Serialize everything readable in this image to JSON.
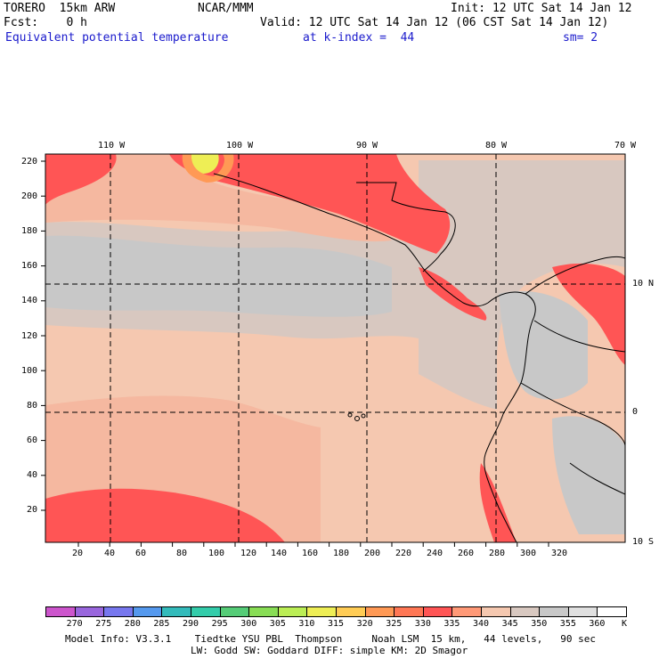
{
  "header": {
    "model": "TORERO  15km ARW",
    "org": "NCAR/MMM",
    "init": "Init: 12 UTC Sat 14 Jan 12",
    "fcst": "Fcst:    0 h",
    "valid": "Valid: 12 UTC Sat 14 Jan 12 (06 CST Sat 14 Jan 12)",
    "field": "Equivalent potential temperature",
    "level": "at k-index =  44",
    "smooth": "sm= 2"
  },
  "map": {
    "top_lon_labels": [
      "110 W",
      "100 W",
      "90 W",
      "80 W",
      "70 W"
    ],
    "right_lat_labels": [
      "10 N",
      "0",
      "10 S"
    ],
    "y_grid_labels": [
      "220",
      "200",
      "180",
      "160",
      "140",
      "120",
      "100",
      "80",
      "60",
      "40",
      "20"
    ],
    "x_grid_labels": [
      "20",
      "40",
      "60",
      "80",
      "100",
      "120",
      "140",
      "160",
      "180",
      "200",
      "220",
      "240",
      "260",
      "280",
      "300",
      "320"
    ]
  },
  "colorbar": {
    "unit": "K",
    "labels": [
      "270",
      "275",
      "280",
      "285",
      "290",
      "295",
      "300",
      "305",
      "310",
      "315",
      "320",
      "325",
      "330",
      "335",
      "340",
      "345",
      "350",
      "355",
      "360"
    ],
    "colors": [
      "#cc55cc",
      "#9966dd",
      "#7777ee",
      "#5599ee",
      "#33bbbb",
      "#33ccaa",
      "#55cc77",
      "#88dd55",
      "#bbee55",
      "#eeee55",
      "#ffcc55",
      "#ff9955",
      "#ff7755",
      "#ff5555",
      "#ff9977",
      "#f5c8b0",
      "#d8c8c0",
      "#c8c8c8",
      "#e0e0e0",
      "#ffffff"
    ]
  },
  "footer": {
    "line1": "Model Info: V3.3.1    Tiedtke YSU PBL  Thompson     Noah LSM  15 km,   44 levels,   90 sec",
    "line2": "LW: Godd SW: Goddard DIFF: simple KM: 2D Smagor"
  }
}
